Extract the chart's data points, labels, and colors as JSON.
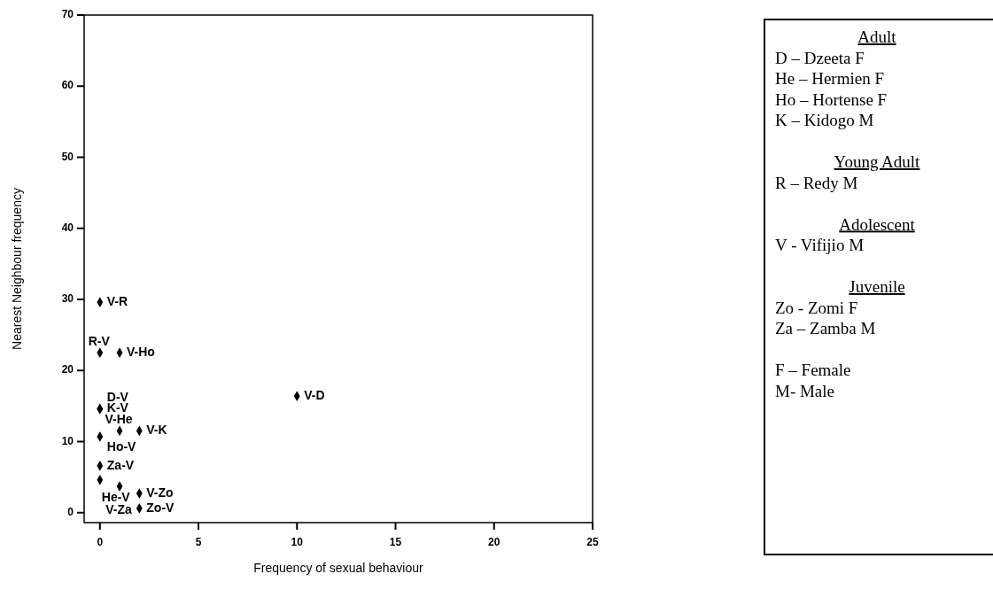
{
  "chart_data": [
    {
      "type": "scatter",
      "xlabel": "Frequency of sexual behaviour",
      "ylabel": "Nearest Neighbour frequency",
      "x": [
        0,
        0,
        1,
        0,
        0,
        1,
        2,
        0,
        0,
        1,
        2,
        2,
        10,
        0
      ],
      "series": [
        {
          "color": "#000000",
          "values": [
            29.6,
            22.5,
            22.5,
            14.6,
            10.7,
            11.5,
            11.5,
            6.6,
            4.6,
            3.7,
            2.7,
            0.6,
            16.4,
            14.6
          ],
          "value_labels": [
            "V-R",
            "R-V",
            "V-Ho",
            "K-V",
            "Ho-V",
            "V-He",
            "V-K",
            "Za-V",
            "He-V",
            "V-Za",
            "V-Zo",
            "Zo-V",
            "V-D",
            "D-V"
          ]
        }
      ],
      "marker": "diamond",
      "xlim": [
        -0.8,
        25
      ],
      "ylim": [
        -1.4,
        70
      ],
      "xticks": [
        0,
        5,
        10,
        15,
        20,
        25
      ],
      "yticks": [
        0,
        10,
        20,
        30,
        40,
        50,
        60,
        70
      ],
      "grid": false
    },
    {
      "type": "other",
      "annotations": [
        "Adult\nD – Dzeeta  F\nHe – Hermien F\nHo – Hortense F\nK – Kidogo M",
        "Young Adult\nR – Redy M",
        "Adolescent\nV - Vifijio M",
        "Juvenile\nZo - Zomi F\nZa – Zamba M",
        "F – Female\nM- Male"
      ]
    }
  ]
}
